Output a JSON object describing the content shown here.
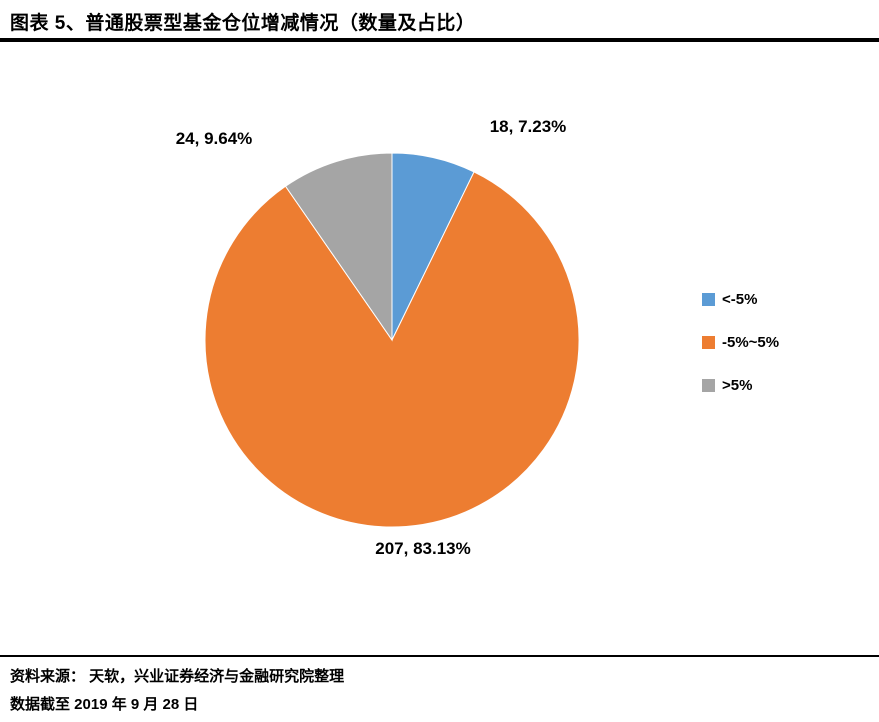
{
  "header": {
    "title": "图表 5、普通股票型基金仓位增减情况（数量及占比）"
  },
  "chart_data": {
    "type": "pie",
    "title": "普通股票型基金仓位增减情况（数量及占比）",
    "start_angle_deg": 0,
    "direction": "clockwise",
    "legend_position": "right",
    "slices": [
      {
        "name": "<-5%",
        "value": 18,
        "pct": 7.23,
        "color": "#5B9BD5",
        "label": "18, 7.23%"
      },
      {
        "name": "-5%~5%",
        "value": 207,
        "pct": 83.13,
        "color": "#ED7D31",
        "label": "207, 83.13%"
      },
      {
        "name": ">5%",
        "value": 24,
        "pct": 9.64,
        "color": "#A5A5A5",
        "label": "24, 9.64%"
      }
    ]
  },
  "footer": {
    "source": "资料来源： 天软，兴业证券经济与金融研究院整理",
    "date_note": "数据截至 2019 年 9 月 28 日"
  }
}
